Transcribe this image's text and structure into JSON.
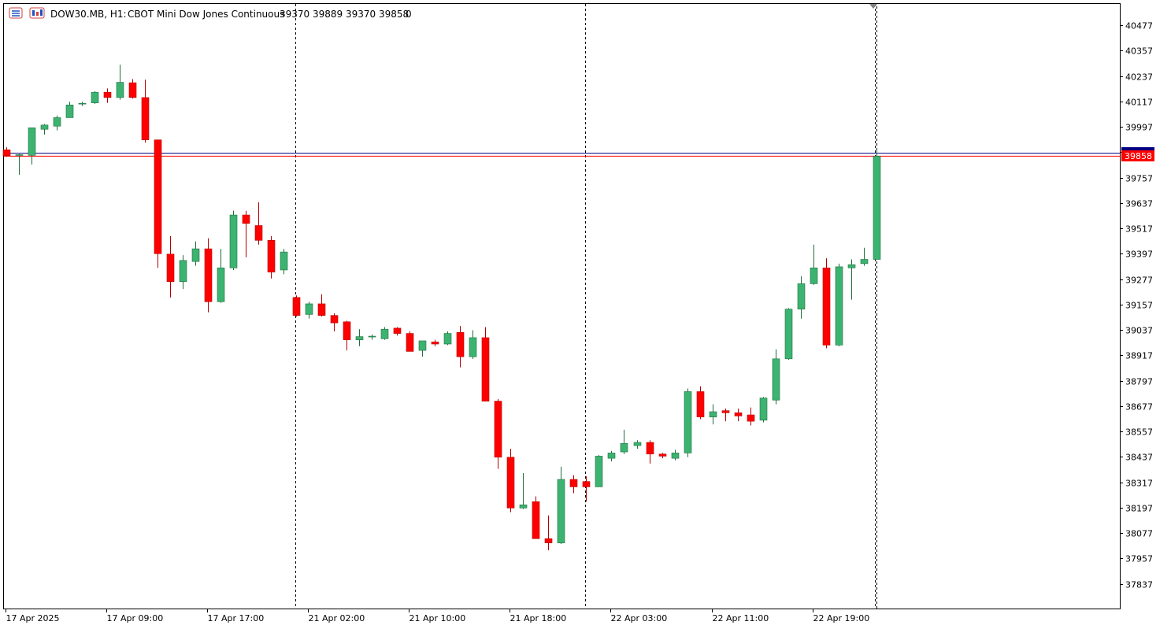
{
  "header": {
    "symbol": "DOW30.MB, H1:",
    "description": "CBOT Mini Dow Jones Continuous",
    "ohlc": "39370 39889 39370 39858",
    "volume": "0"
  },
  "colors": {
    "bull_fill": "#3cb371",
    "bull_border": "#1f6f3f",
    "bear_fill": "#ff0000",
    "bear_border": "#b40000",
    "ask_line": "#000080",
    "bid_line": "#ff0000",
    "price_tag_bg": "#ff0000",
    "period_sep": "#000000"
  },
  "price_tag": "39858",
  "chart_data": {
    "type": "candlestick",
    "timeframe": "H1",
    "ylim": [
      37737,
      40537
    ],
    "yticks": [
      37837,
      37957,
      38077,
      38197,
      38317,
      38437,
      38557,
      38677,
      38797,
      38917,
      39037,
      39157,
      39277,
      39397,
      39517,
      39637,
      39757,
      39877,
      39997,
      40117,
      40237,
      40357,
      40477
    ],
    "ytick_labels": [
      "37837",
      "37957",
      "38077",
      "38197",
      "38317",
      "38437",
      "38557",
      "38677",
      "38797",
      "38917",
      "39037",
      "39157",
      "39277",
      "39397",
      "39517",
      "39637",
      "39757",
      "39877",
      "39997",
      "40117",
      "40237",
      "40357",
      "40477"
    ],
    "x_labels": [
      {
        "index": 0,
        "text": "17 Apr 2025"
      },
      {
        "index": 8,
        "text": "17 Apr 09:00"
      },
      {
        "index": 16,
        "text": "17 Apr 17:00"
      },
      {
        "index": 24,
        "text": "21 Apr 02:00"
      },
      {
        "index": 32,
        "text": "21 Apr 10:00"
      },
      {
        "index": 40,
        "text": "21 Apr 18:00"
      },
      {
        "index": 48,
        "text": "22 Apr 03:00"
      },
      {
        "index": 56,
        "text": "22 Apr 11:00"
      },
      {
        "index": 64,
        "text": "22 Apr 19:00"
      }
    ],
    "period_separators": [
      22.9,
      45.9,
      68.9
    ],
    "bid": 39858,
    "ask": 39872,
    "candles": [
      {
        "o": 39888,
        "h": 39900,
        "l": 39855,
        "c": 39860
      },
      {
        "o": 39862,
        "h": 39868,
        "l": 39770,
        "c": 39865
      },
      {
        "o": 39862,
        "h": 39990,
        "l": 39818,
        "c": 39992
      },
      {
        "o": 39985,
        "h": 40010,
        "l": 39960,
        "c": 40005
      },
      {
        "o": 40000,
        "h": 40050,
        "l": 39980,
        "c": 40040
      },
      {
        "o": 40040,
        "h": 40115,
        "l": 40040,
        "c": 40100
      },
      {
        "o": 40105,
        "h": 40115,
        "l": 40095,
        "c": 40108
      },
      {
        "o": 40110,
        "h": 40165,
        "l": 40105,
        "c": 40160
      },
      {
        "o": 40160,
        "h": 40178,
        "l": 40110,
        "c": 40135
      },
      {
        "o": 40135,
        "h": 40290,
        "l": 40125,
        "c": 40207
      },
      {
        "o": 40205,
        "h": 40222,
        "l": 40130,
        "c": 40135
      },
      {
        "o": 40135,
        "h": 40220,
        "l": 39922,
        "c": 39935
      },
      {
        "o": 39935,
        "h": 39935,
        "l": 39330,
        "c": 39397
      },
      {
        "o": 39395,
        "h": 39480,
        "l": 39190,
        "c": 39265
      },
      {
        "o": 39265,
        "h": 39390,
        "l": 39230,
        "c": 39365
      },
      {
        "o": 39360,
        "h": 39455,
        "l": 39340,
        "c": 39420
      },
      {
        "o": 39420,
        "h": 39470,
        "l": 39120,
        "c": 39170
      },
      {
        "o": 39170,
        "h": 39420,
        "l": 39165,
        "c": 39330
      },
      {
        "o": 39330,
        "h": 39600,
        "l": 39320,
        "c": 39580
      },
      {
        "o": 39580,
        "h": 39600,
        "l": 39380,
        "c": 39540
      },
      {
        "o": 39530,
        "h": 39640,
        "l": 39440,
        "c": 39460
      },
      {
        "o": 39460,
        "h": 39480,
        "l": 39280,
        "c": 39310
      },
      {
        "o": 39320,
        "h": 39420,
        "l": 39300,
        "c": 39405
      },
      {
        "o": 39190,
        "h": 39200,
        "l": 39100,
        "c": 39105
      },
      {
        "o": 39110,
        "h": 39170,
        "l": 39090,
        "c": 39160
      },
      {
        "o": 39160,
        "h": 39205,
        "l": 39100,
        "c": 39105
      },
      {
        "o": 39105,
        "h": 39115,
        "l": 39030,
        "c": 39070
      },
      {
        "o": 39075,
        "h": 39080,
        "l": 38940,
        "c": 38990
      },
      {
        "o": 38990,
        "h": 39040,
        "l": 38960,
        "c": 39005
      },
      {
        "o": 39005,
        "h": 39015,
        "l": 38990,
        "c": 39007
      },
      {
        "o": 38995,
        "h": 39050,
        "l": 38990,
        "c": 39040
      },
      {
        "o": 39045,
        "h": 39050,
        "l": 39010,
        "c": 39020
      },
      {
        "o": 39020,
        "h": 39030,
        "l": 38935,
        "c": 38935
      },
      {
        "o": 38940,
        "h": 38985,
        "l": 38910,
        "c": 38985
      },
      {
        "o": 38980,
        "h": 38990,
        "l": 38960,
        "c": 38970
      },
      {
        "o": 38970,
        "h": 39030,
        "l": 38965,
        "c": 39020
      },
      {
        "o": 39025,
        "h": 39055,
        "l": 38860,
        "c": 38910
      },
      {
        "o": 38910,
        "h": 39035,
        "l": 38900,
        "c": 39000
      },
      {
        "o": 39000,
        "h": 39050,
        "l": 38700,
        "c": 38700
      },
      {
        "o": 38700,
        "h": 38710,
        "l": 38380,
        "c": 38435
      },
      {
        "o": 38435,
        "h": 38475,
        "l": 38175,
        "c": 38195
      },
      {
        "o": 38195,
        "h": 38360,
        "l": 38190,
        "c": 38210
      },
      {
        "o": 38225,
        "h": 38250,
        "l": 38050,
        "c": 38050
      },
      {
        "o": 38050,
        "h": 38160,
        "l": 37995,
        "c": 38030
      },
      {
        "o": 38030,
        "h": 38390,
        "l": 38025,
        "c": 38330
      },
      {
        "o": 38330,
        "h": 38350,
        "l": 38265,
        "c": 38295
      },
      {
        "o": 38320,
        "h": 38345,
        "l": 38225,
        "c": 38295
      },
      {
        "o": 38295,
        "h": 38445,
        "l": 38295,
        "c": 38440
      },
      {
        "o": 38430,
        "h": 38465,
        "l": 38415,
        "c": 38455
      },
      {
        "o": 38460,
        "h": 38565,
        "l": 38450,
        "c": 38500
      },
      {
        "o": 38490,
        "h": 38515,
        "l": 38475,
        "c": 38505
      },
      {
        "o": 38505,
        "h": 38515,
        "l": 38405,
        "c": 38450
      },
      {
        "o": 38450,
        "h": 38455,
        "l": 38430,
        "c": 38440
      },
      {
        "o": 38430,
        "h": 38470,
        "l": 38420,
        "c": 38455
      },
      {
        "o": 38455,
        "h": 38760,
        "l": 38435,
        "c": 38745
      },
      {
        "o": 38745,
        "h": 38770,
        "l": 38615,
        "c": 38625
      },
      {
        "o": 38625,
        "h": 38685,
        "l": 38590,
        "c": 38650
      },
      {
        "o": 38655,
        "h": 38665,
        "l": 38605,
        "c": 38645
      },
      {
        "o": 38645,
        "h": 38665,
        "l": 38605,
        "c": 38630
      },
      {
        "o": 38635,
        "h": 38670,
        "l": 38585,
        "c": 38605
      },
      {
        "o": 38610,
        "h": 38720,
        "l": 38600,
        "c": 38715
      },
      {
        "o": 38705,
        "h": 38945,
        "l": 38685,
        "c": 38900
      },
      {
        "o": 38900,
        "h": 39140,
        "l": 38895,
        "c": 39135
      },
      {
        "o": 39135,
        "h": 39290,
        "l": 39090,
        "c": 39255
      },
      {
        "o": 39255,
        "h": 39440,
        "l": 39250,
        "c": 39330
      },
      {
        "o": 39330,
        "h": 39375,
        "l": 38950,
        "c": 38965
      },
      {
        "o": 38965,
        "h": 39350,
        "l": 38960,
        "c": 39335
      },
      {
        "o": 39330,
        "h": 39370,
        "l": 39180,
        "c": 39345
      },
      {
        "o": 39350,
        "h": 39425,
        "l": 39340,
        "c": 39370
      },
      {
        "o": 39370,
        "h": 39889,
        "l": 39370,
        "c": 39858
      }
    ]
  }
}
